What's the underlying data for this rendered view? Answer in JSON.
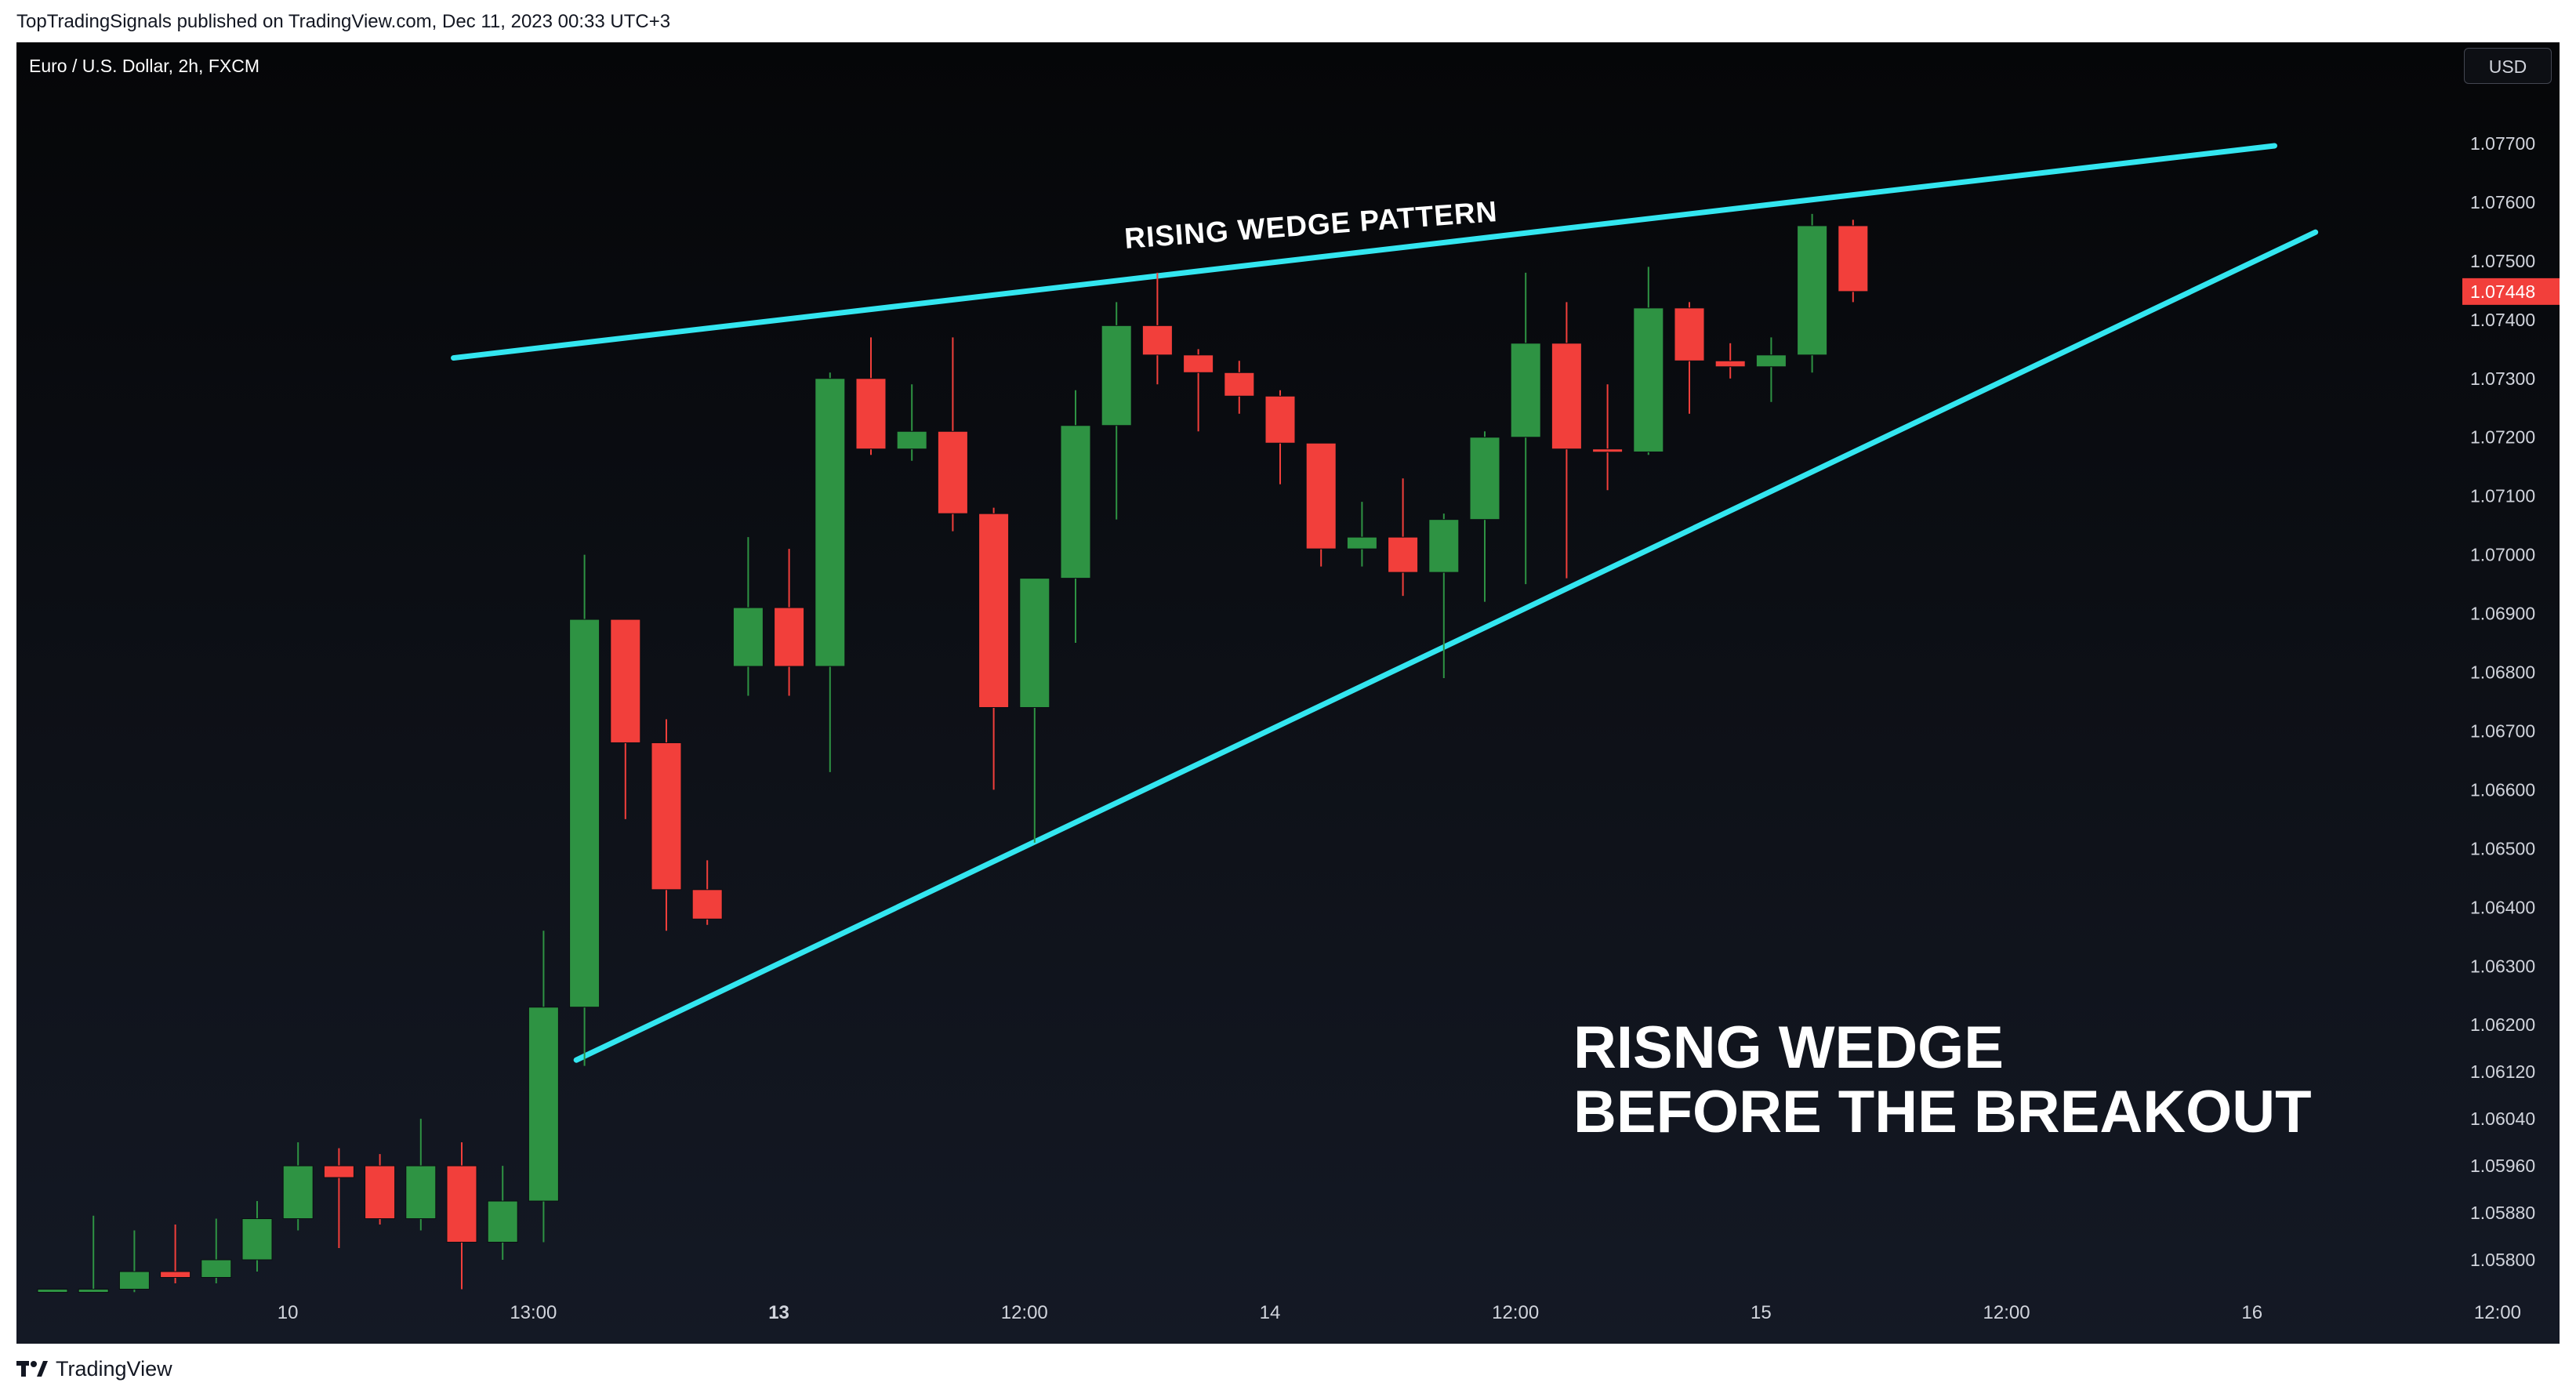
{
  "header": {
    "published_line": "TopTradingSignals published on TradingView.com, Dec 11, 2023 00:33 UTC+3"
  },
  "symbol": {
    "label": "Euro / U.S. Dollar, 2h, FXCM"
  },
  "currency": {
    "label": "USD"
  },
  "annotations": {
    "wedge_label": "RISING WEDGE PATTERN",
    "headline_line1": "RISNG WEDGE",
    "headline_line2": "BEFORE THE BREAKOUT"
  },
  "footer": {
    "brand": "TradingView"
  },
  "colors": {
    "up": "#2e9343",
    "down": "#f23f3b",
    "trendline": "#33e6f0",
    "price_badge": "#f23f3b",
    "axis_text": "#d1d4dc"
  },
  "chart_data": {
    "type": "candlestick",
    "title": "Euro / U.S. Dollar, 2h, FXCM",
    "price_axis_ticks": [
      1.077,
      1.076,
      1.075,
      1.074,
      1.073,
      1.072,
      1.071,
      1.07,
      1.069,
      1.068,
      1.067,
      1.066,
      1.065,
      1.064,
      1.063,
      1.062,
      1.0612,
      1.0604,
      1.0596,
      1.0588,
      1.058
    ],
    "price_axis_labels": [
      "1.07700",
      "1.07600",
      "1.07500",
      "1.07400",
      "1.07300",
      "1.07200",
      "1.07100",
      "1.07000",
      "1.06900",
      "1.06800",
      "1.06700",
      "1.06600",
      "1.06500",
      "1.06400",
      "1.06300",
      "1.06200",
      "1.06120",
      "1.06040",
      "1.05960",
      "1.05880",
      "1.05800"
    ],
    "time_axis": [
      {
        "label": "10",
        "x": 5.75,
        "bold": false
      },
      {
        "label": "13:00",
        "x": 11.75,
        "bold": false
      },
      {
        "label": "13",
        "x": 17.75,
        "bold": true
      },
      {
        "label": "12:00",
        "x": 23.75,
        "bold": false
      },
      {
        "label": "14",
        "x": 29.75,
        "bold": false
      },
      {
        "label": "12:00",
        "x": 35.75,
        "bold": false
      },
      {
        "label": "15",
        "x": 41.75,
        "bold": false
      },
      {
        "label": "12:00",
        "x": 47.75,
        "bold": false
      },
      {
        "label": "16",
        "x": 53.75,
        "bold": false
      },
      {
        "label": "12:00",
        "x": 59.75,
        "bold": false
      }
    ],
    "last_price": 1.07448,
    "last_price_label": "1.07448",
    "candles": [
      {
        "o": 1.0575,
        "h": 1.0575,
        "l": 1.0575,
        "c": 1.0575
      },
      {
        "o": 1.0575,
        "h": 1.05875,
        "l": 1.05745,
        "c": 1.0575
      },
      {
        "o": 1.0575,
        "h": 1.0585,
        "l": 1.05745,
        "c": 1.0578
      },
      {
        "o": 1.0578,
        "h": 1.0586,
        "l": 1.0576,
        "c": 1.0577
      },
      {
        "o": 1.0577,
        "h": 1.0587,
        "l": 1.0576,
        "c": 1.058
      },
      {
        "o": 1.058,
        "h": 1.059,
        "l": 1.0578,
        "c": 1.0587
      },
      {
        "o": 1.0587,
        "h": 1.06,
        "l": 1.0585,
        "c": 1.0596
      },
      {
        "o": 1.0596,
        "h": 1.0599,
        "l": 1.0582,
        "c": 1.0594
      },
      {
        "o": 1.0596,
        "h": 1.0598,
        "l": 1.0586,
        "c": 1.0587
      },
      {
        "o": 1.0587,
        "h": 1.0604,
        "l": 1.0585,
        "c": 1.0596
      },
      {
        "o": 1.0596,
        "h": 1.06,
        "l": 1.0575,
        "c": 1.0583
      },
      {
        "o": 1.0583,
        "h": 1.0596,
        "l": 1.058,
        "c": 1.059
      },
      {
        "o": 1.059,
        "h": 1.0636,
        "l": 1.0583,
        "c": 1.0623
      },
      {
        "o": 1.0623,
        "h": 1.07,
        "l": 1.0613,
        "c": 1.0689
      },
      {
        "o": 1.0689,
        "h": 1.0689,
        "l": 1.0655,
        "c": 1.0668
      },
      {
        "o": 1.0668,
        "h": 1.0672,
        "l": 1.0636,
        "c": 1.0643
      },
      {
        "o": 1.0643,
        "h": 1.0648,
        "l": 1.0637,
        "c": 1.0638
      },
      {
        "o": 1.0681,
        "h": 1.0703,
        "l": 1.0676,
        "c": 1.0691
      },
      {
        "o": 1.0691,
        "h": 1.0701,
        "l": 1.0676,
        "c": 1.0681
      },
      {
        "o": 1.0681,
        "h": 1.0731,
        "l": 1.0663,
        "c": 1.073
      },
      {
        "o": 1.073,
        "h": 1.0737,
        "l": 1.0717,
        "c": 1.0718
      },
      {
        "o": 1.0718,
        "h": 1.0729,
        "l": 1.0716,
        "c": 1.0721
      },
      {
        "o": 1.0721,
        "h": 1.0737,
        "l": 1.0704,
        "c": 1.0707
      },
      {
        "o": 1.0707,
        "h": 1.0708,
        "l": 1.066,
        "c": 1.0674
      },
      {
        "o": 1.0674,
        "h": 1.0696,
        "l": 1.0651,
        "c": 1.0696
      },
      {
        "o": 1.0696,
        "h": 1.0728,
        "l": 1.0685,
        "c": 1.0722
      },
      {
        "o": 1.0722,
        "h": 1.0743,
        "l": 1.0706,
        "c": 1.0739
      },
      {
        "o": 1.0739,
        "h": 1.0748,
        "l": 1.0729,
        "c": 1.0734
      },
      {
        "o": 1.0734,
        "h": 1.0735,
        "l": 1.0721,
        "c": 1.0731
      },
      {
        "o": 1.0731,
        "h": 1.0733,
        "l": 1.0724,
        "c": 1.0727
      },
      {
        "o": 1.0727,
        "h": 1.0728,
        "l": 1.0712,
        "c": 1.0719
      },
      {
        "o": 1.0719,
        "h": 1.0719,
        "l": 1.0698,
        "c": 1.0701
      },
      {
        "o": 1.0701,
        "h": 1.0709,
        "l": 1.0698,
        "c": 1.0703
      },
      {
        "o": 1.0703,
        "h": 1.0713,
        "l": 1.0693,
        "c": 1.0697
      },
      {
        "o": 1.0697,
        "h": 1.0707,
        "l": 1.0679,
        "c": 1.0706
      },
      {
        "o": 1.0706,
        "h": 1.0721,
        "l": 1.0692,
        "c": 1.072
      },
      {
        "o": 1.072,
        "h": 1.0748,
        "l": 1.0695,
        "c": 1.0736
      },
      {
        "o": 1.0736,
        "h": 1.0743,
        "l": 1.0696,
        "c": 1.0718
      },
      {
        "o": 1.0718,
        "h": 1.0729,
        "l": 1.0711,
        "c": 1.07175
      },
      {
        "o": 1.07175,
        "h": 1.0749,
        "l": 1.0717,
        "c": 1.0742
      },
      {
        "o": 1.0742,
        "h": 1.0743,
        "l": 1.0724,
        "c": 1.0733
      },
      {
        "o": 1.0733,
        "h": 1.0736,
        "l": 1.073,
        "c": 1.0732
      },
      {
        "o": 1.0732,
        "h": 1.0737,
        "l": 1.0726,
        "c": 1.0734
      },
      {
        "o": 1.0734,
        "h": 1.0758,
        "l": 1.0731,
        "c": 1.0756
      },
      {
        "o": 1.0756,
        "h": 1.0757,
        "l": 1.0743,
        "c": 1.07448
      }
    ],
    "trendlines": [
      {
        "name": "resistance",
        "x1": 9.8,
        "y1": 1.07335,
        "x2": 54.3,
        "y2": 1.07696
      },
      {
        "name": "support",
        "x1": 12.8,
        "y1": 1.0614,
        "x2": 55.3,
        "y2": 1.07549
      }
    ]
  }
}
